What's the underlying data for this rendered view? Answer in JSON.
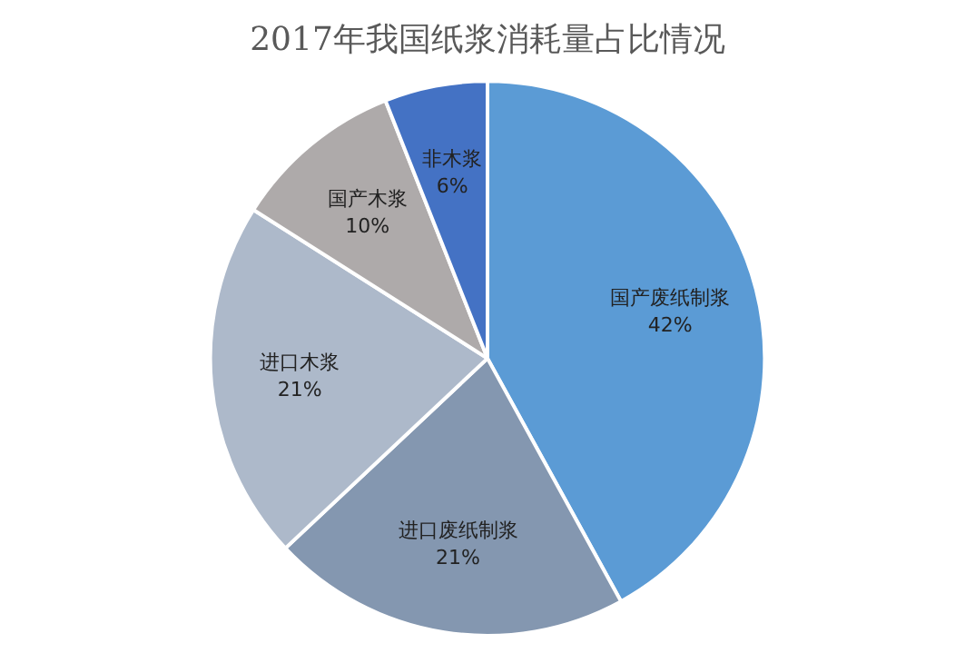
{
  "chart_data": {
    "type": "pie",
    "title": "2017年我国纸浆消耗量占比情况",
    "categories": [
      "国产废纸制浆",
      "进口废纸制浆",
      "进口木浆",
      "国产木浆",
      "非木浆"
    ],
    "values": [
      42,
      21,
      21,
      10,
      6
    ],
    "colors": [
      "#5b9bd5",
      "#8497b0",
      "#adb9ca",
      "#aeaaaa",
      "#4472c4"
    ],
    "value_labels": [
      "42%",
      "21%",
      "21%",
      "10%",
      "6%"
    ],
    "legend": false
  }
}
